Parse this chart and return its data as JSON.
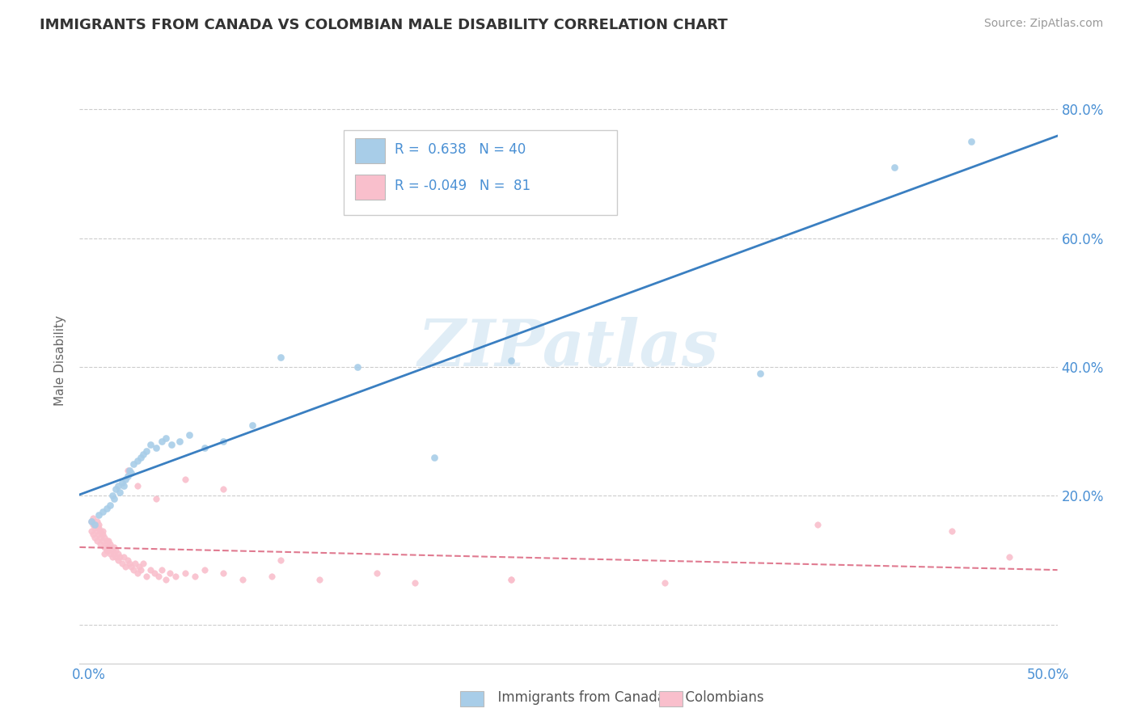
{
  "title": "IMMIGRANTS FROM CANADA VS COLOMBIAN MALE DISABILITY CORRELATION CHART",
  "source": "Source: ZipAtlas.com",
  "ylabel": "Male Disability",
  "xlim": [
    -0.005,
    0.505
  ],
  "ylim": [
    -0.06,
    0.88
  ],
  "yticks": [
    0.0,
    0.2,
    0.4,
    0.6,
    0.8
  ],
  "watermark": "ZIPatlas",
  "legend_blue_r": "0.638",
  "legend_blue_n": "40",
  "legend_pink_r": "-0.049",
  "legend_pink_n": "81",
  "blue_color": "#a8cde8",
  "pink_color": "#f9bfcc",
  "blue_line_color": "#3a7fc1",
  "pink_line_color": "#e07a90",
  "text_color_blue": "#4a90d4",
  "canada_x": [
    0.001,
    0.003,
    0.005,
    0.007,
    0.009,
    0.011,
    0.012,
    0.013,
    0.014,
    0.015,
    0.016,
    0.017,
    0.018,
    0.019,
    0.02,
    0.021,
    0.022,
    0.023,
    0.025,
    0.027,
    0.028,
    0.03,
    0.032,
    0.035,
    0.038,
    0.04,
    0.043,
    0.047,
    0.052,
    0.06,
    0.07,
    0.085,
    0.1,
    0.14,
    0.18,
    0.22,
    0.265,
    0.35,
    0.42,
    0.46
  ],
  "canada_y": [
    0.16,
    0.155,
    0.17,
    0.175,
    0.18,
    0.185,
    0.2,
    0.195,
    0.21,
    0.215,
    0.205,
    0.22,
    0.215,
    0.225,
    0.23,
    0.24,
    0.235,
    0.25,
    0.255,
    0.26,
    0.265,
    0.27,
    0.28,
    0.275,
    0.285,
    0.29,
    0.28,
    0.285,
    0.295,
    0.275,
    0.285,
    0.31,
    0.415,
    0.4,
    0.26,
    0.41,
    0.65,
    0.39,
    0.71,
    0.75
  ],
  "colombia_x": [
    0.001,
    0.001,
    0.002,
    0.002,
    0.002,
    0.003,
    0.003,
    0.003,
    0.004,
    0.004,
    0.004,
    0.005,
    0.005,
    0.005,
    0.006,
    0.006,
    0.006,
    0.007,
    0.007,
    0.007,
    0.008,
    0.008,
    0.008,
    0.009,
    0.009,
    0.009,
    0.01,
    0.01,
    0.01,
    0.011,
    0.011,
    0.012,
    0.012,
    0.013,
    0.013,
    0.014,
    0.014,
    0.015,
    0.015,
    0.016,
    0.017,
    0.018,
    0.019,
    0.02,
    0.021,
    0.022,
    0.023,
    0.024,
    0.025,
    0.026,
    0.027,
    0.028,
    0.03,
    0.032,
    0.034,
    0.036,
    0.038,
    0.04,
    0.042,
    0.045,
    0.05,
    0.055,
    0.06,
    0.07,
    0.08,
    0.095,
    0.12,
    0.17,
    0.22,
    0.3,
    0.02,
    0.025,
    0.035,
    0.05,
    0.07,
    0.1,
    0.15,
    0.22,
    0.38,
    0.45,
    0.48
  ],
  "colombia_y": [
    0.16,
    0.145,
    0.155,
    0.14,
    0.165,
    0.15,
    0.135,
    0.155,
    0.145,
    0.16,
    0.13,
    0.155,
    0.14,
    0.15,
    0.135,
    0.145,
    0.125,
    0.14,
    0.13,
    0.145,
    0.12,
    0.135,
    0.11,
    0.125,
    0.115,
    0.13,
    0.12,
    0.115,
    0.13,
    0.11,
    0.125,
    0.115,
    0.105,
    0.12,
    0.11,
    0.105,
    0.115,
    0.1,
    0.11,
    0.105,
    0.095,
    0.105,
    0.09,
    0.1,
    0.095,
    0.09,
    0.085,
    0.095,
    0.08,
    0.09,
    0.085,
    0.095,
    0.075,
    0.085,
    0.08,
    0.075,
    0.085,
    0.07,
    0.08,
    0.075,
    0.08,
    0.075,
    0.085,
    0.08,
    0.07,
    0.075,
    0.07,
    0.065,
    0.07,
    0.065,
    0.24,
    0.215,
    0.195,
    0.225,
    0.21,
    0.1,
    0.08,
    0.07,
    0.155,
    0.145,
    0.105
  ]
}
